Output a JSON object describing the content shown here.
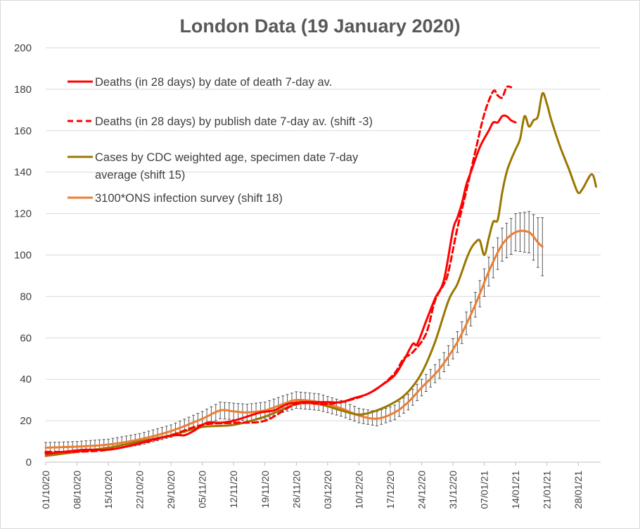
{
  "chart_data": {
    "type": "line",
    "title": "London Data (19 January 2020)",
    "xlabel": "",
    "ylabel": "",
    "ylim": [
      0,
      200
    ],
    "yticks": [
      0,
      20,
      40,
      60,
      80,
      100,
      120,
      140,
      160,
      180,
      200
    ],
    "x_range": [
      "2020-10-01",
      "2021-02-02"
    ],
    "xtick_labels": [
      "01/10/20",
      "08/10/20",
      "15/10/20",
      "22/10/20",
      "29/10/20",
      "05/11/20",
      "12/11/20",
      "19/11/20",
      "26/11/20",
      "03/12/20",
      "10/12/20",
      "17/12/20",
      "24/12/20",
      "31/12/20",
      "07/01/21",
      "14/01/21",
      "21/01/21",
      "28/01/21"
    ],
    "grid": "horizontal",
    "legend_position": "top-left",
    "series": [
      {
        "name": "Deaths (in 28 days) by date of death 7-day av.",
        "color": "#ff0000",
        "style": "solid",
        "points": [
          [
            "2020-10-01",
            4
          ],
          [
            "2020-10-05",
            5
          ],
          [
            "2020-10-10",
            6
          ],
          [
            "2020-10-15",
            6
          ],
          [
            "2020-10-20",
            8
          ],
          [
            "2020-10-25",
            11
          ],
          [
            "2020-10-30",
            13
          ],
          [
            "2020-11-01",
            13
          ],
          [
            "2020-11-03",
            15
          ],
          [
            "2020-11-06",
            19
          ],
          [
            "2020-11-09",
            19
          ],
          [
            "2020-11-12",
            20
          ],
          [
            "2020-11-15",
            22
          ],
          [
            "2020-11-18",
            24
          ],
          [
            "2020-11-21",
            25
          ],
          [
            "2020-11-24",
            28
          ],
          [
            "2020-11-27",
            29
          ],
          [
            "2020-11-30",
            29
          ],
          [
            "2020-12-03",
            29
          ],
          [
            "2020-12-06",
            29
          ],
          [
            "2020-12-09",
            31
          ],
          [
            "2020-12-12",
            33
          ],
          [
            "2020-12-15",
            37
          ],
          [
            "2020-12-18",
            42
          ],
          [
            "2020-12-20",
            49
          ],
          [
            "2020-12-22",
            57
          ],
          [
            "2020-12-23",
            57
          ],
          [
            "2020-12-25",
            68
          ],
          [
            "2020-12-27",
            79
          ],
          [
            "2020-12-29",
            88
          ],
          [
            "2020-12-31",
            112
          ],
          [
            "2021-01-01",
            118
          ],
          [
            "2021-01-02",
            125
          ],
          [
            "2021-01-03",
            134
          ],
          [
            "2021-01-04",
            140
          ],
          [
            "2021-01-06",
            152
          ],
          [
            "2021-01-08",
            160
          ],
          [
            "2021-01-09",
            164
          ],
          [
            "2021-01-10",
            164
          ],
          [
            "2021-01-11",
            167
          ],
          [
            "2021-01-12",
            167
          ],
          [
            "2021-01-13",
            165
          ],
          [
            "2021-01-14",
            164
          ]
        ]
      },
      {
        "name": "Deaths (in 28 days) by publish date 7-day av. (shift -3)",
        "color": "#ff0000",
        "style": "dashed",
        "points": [
          [
            "2020-10-01",
            5
          ],
          [
            "2020-10-08",
            5
          ],
          [
            "2020-10-15",
            6
          ],
          [
            "2020-10-22",
            9
          ],
          [
            "2020-10-29",
            13
          ],
          [
            "2020-11-05",
            18
          ],
          [
            "2020-11-12",
            19
          ],
          [
            "2020-11-19",
            20
          ],
          [
            "2020-11-26",
            28
          ],
          [
            "2020-12-03",
            28
          ],
          [
            "2020-12-08",
            30
          ],
          [
            "2020-12-12",
            33
          ],
          [
            "2020-12-15",
            37
          ],
          [
            "2020-12-18",
            43
          ],
          [
            "2020-12-20",
            50
          ],
          [
            "2020-12-22",
            53
          ],
          [
            "2020-12-25",
            62
          ],
          [
            "2020-12-27",
            78
          ],
          [
            "2020-12-29",
            86
          ],
          [
            "2020-12-30",
            92
          ],
          [
            "2021-01-01",
            113
          ],
          [
            "2021-01-03",
            131
          ],
          [
            "2021-01-05",
            150
          ],
          [
            "2021-01-07",
            168
          ],
          [
            "2021-01-09",
            179
          ],
          [
            "2021-01-10",
            177
          ],
          [
            "2021-01-11",
            176
          ],
          [
            "2021-01-12",
            181
          ],
          [
            "2021-01-13",
            181
          ]
        ]
      },
      {
        "name": "Cases by CDC weighted age, specimen date 7-day average (shift 15)",
        "color": "#9a7600",
        "style": "solid",
        "points": [
          [
            "2020-10-01",
            3
          ],
          [
            "2020-10-08",
            5
          ],
          [
            "2020-10-15",
            7
          ],
          [
            "2020-10-22",
            10
          ],
          [
            "2020-10-29",
            13
          ],
          [
            "2020-11-05",
            17
          ],
          [
            "2020-11-12",
            18
          ],
          [
            "2020-11-19",
            22
          ],
          [
            "2020-11-26",
            28
          ],
          [
            "2020-12-01",
            28
          ],
          [
            "2020-12-06",
            25
          ],
          [
            "2020-12-10",
            23
          ],
          [
            "2020-12-14",
            25
          ],
          [
            "2020-12-18",
            29
          ],
          [
            "2020-12-21",
            34
          ],
          [
            "2020-12-24",
            43
          ],
          [
            "2020-12-27",
            58
          ],
          [
            "2020-12-30",
            78
          ],
          [
            "2021-01-01",
            86
          ],
          [
            "2021-01-03",
            98
          ],
          [
            "2021-01-04",
            103
          ],
          [
            "2021-01-05",
            106
          ],
          [
            "2021-01-06",
            107
          ],
          [
            "2021-01-07",
            100
          ],
          [
            "2021-01-08",
            108
          ],
          [
            "2021-01-09",
            116
          ],
          [
            "2021-01-10",
            117
          ],
          [
            "2021-01-11",
            130
          ],
          [
            "2021-01-12",
            140
          ],
          [
            "2021-01-13",
            146
          ],
          [
            "2021-01-14",
            151
          ],
          [
            "2021-01-15",
            156
          ],
          [
            "2021-01-16",
            167
          ],
          [
            "2021-01-17",
            162
          ],
          [
            "2021-01-18",
            165
          ],
          [
            "2021-01-19",
            167
          ],
          [
            "2021-01-20",
            178
          ],
          [
            "2021-01-21",
            173
          ],
          [
            "2021-01-22",
            165
          ],
          [
            "2021-01-24",
            152
          ],
          [
            "2021-01-26",
            141
          ],
          [
            "2021-01-27",
            135
          ],
          [
            "2021-01-28",
            130
          ],
          [
            "2021-01-29",
            132
          ],
          [
            "2021-01-31",
            139
          ],
          [
            "2021-02-01",
            133
          ]
        ]
      },
      {
        "name": "3100*ONS infection survey (shift 18)",
        "color": "#ed7d31",
        "style": "solid",
        "error_bars": true,
        "points": [
          [
            "2020-10-01",
            7,
            2.5
          ],
          [
            "2020-10-08",
            7.5,
            2.5
          ],
          [
            "2020-10-15",
            8.5,
            2.6
          ],
          [
            "2020-10-22",
            11,
            2.8
          ],
          [
            "2020-10-29",
            15,
            3
          ],
          [
            "2020-11-05",
            21,
            3.5
          ],
          [
            "2020-11-09",
            25,
            4
          ],
          [
            "2020-11-12",
            24.5,
            4
          ],
          [
            "2020-11-15",
            24,
            4
          ],
          [
            "2020-11-19",
            25,
            4
          ],
          [
            "2020-11-23",
            28,
            4
          ],
          [
            "2020-11-26",
            30,
            4
          ],
          [
            "2020-12-01",
            29,
            4
          ],
          [
            "2020-12-06",
            26,
            3.8
          ],
          [
            "2020-12-10",
            22.5,
            3.5
          ],
          [
            "2020-12-14",
            21,
            3.5
          ],
          [
            "2020-12-18",
            24,
            3.5
          ],
          [
            "2020-12-21",
            29,
            3.8
          ],
          [
            "2020-12-24",
            36,
            4
          ],
          [
            "2020-12-28",
            45,
            4.5
          ],
          [
            "2021-01-01",
            58,
            5
          ],
          [
            "2021-01-05",
            76,
            6
          ],
          [
            "2021-01-08",
            92,
            7
          ],
          [
            "2021-01-11",
            105,
            8
          ],
          [
            "2021-01-14",
            111,
            9
          ],
          [
            "2021-01-17",
            111,
            10
          ],
          [
            "2021-01-19",
            106,
            12
          ],
          [
            "2021-01-20",
            104,
            14
          ]
        ]
      }
    ],
    "legend": {
      "entries": [
        {
          "lines": [
            "Deaths (in 28 days) by date of death 7-day av."
          ],
          "color": "#ff0000",
          "style": "solid"
        },
        {
          "lines": [
            "Deaths (in 28 days) by publish date 7-day av. (shift -3)"
          ],
          "color": "#ff0000",
          "style": "dashed"
        },
        {
          "lines": [
            "Cases by CDC weighted age, specimen date 7-day",
            "average (shift 15)"
          ],
          "color": "#9a7600",
          "style": "solid"
        },
        {
          "lines": [
            "3100*ONS infection survey (shift 18)"
          ],
          "color": "#ed7d31",
          "style": "solid"
        }
      ]
    }
  }
}
